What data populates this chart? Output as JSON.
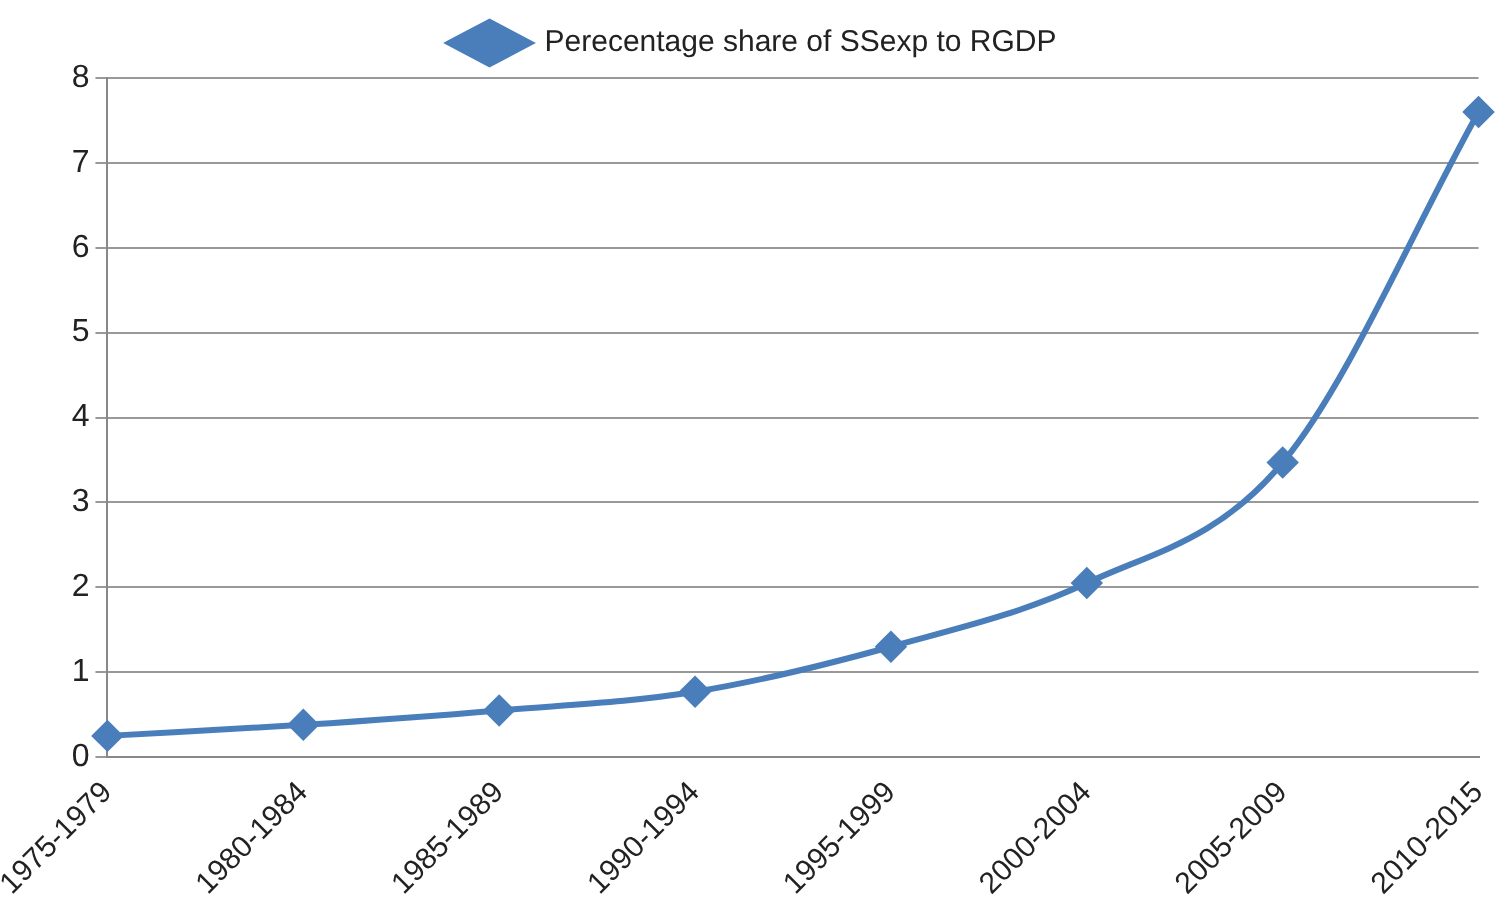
{
  "chart_data": {
    "type": "line",
    "categories": [
      "1975-1979",
      "1980-1984",
      "1985-1989",
      "1990-1994",
      "1995-1999",
      "2000-2004",
      "2005-2009",
      "2010-2015"
    ],
    "series": [
      {
        "name": "Perecentage share of SSexp to RGDP",
        "color": "#4a7ebb",
        "values": [
          0.25,
          0.38,
          0.55,
          0.77,
          1.3,
          2.05,
          3.47,
          7.6
        ]
      }
    ],
    "ylim": [
      0,
      8
    ],
    "yticks": [
      0,
      1,
      2,
      3,
      4,
      5,
      6,
      7,
      8
    ],
    "grid": "y",
    "legend": "top",
    "marker": "diamond",
    "line_style": "solid"
  }
}
